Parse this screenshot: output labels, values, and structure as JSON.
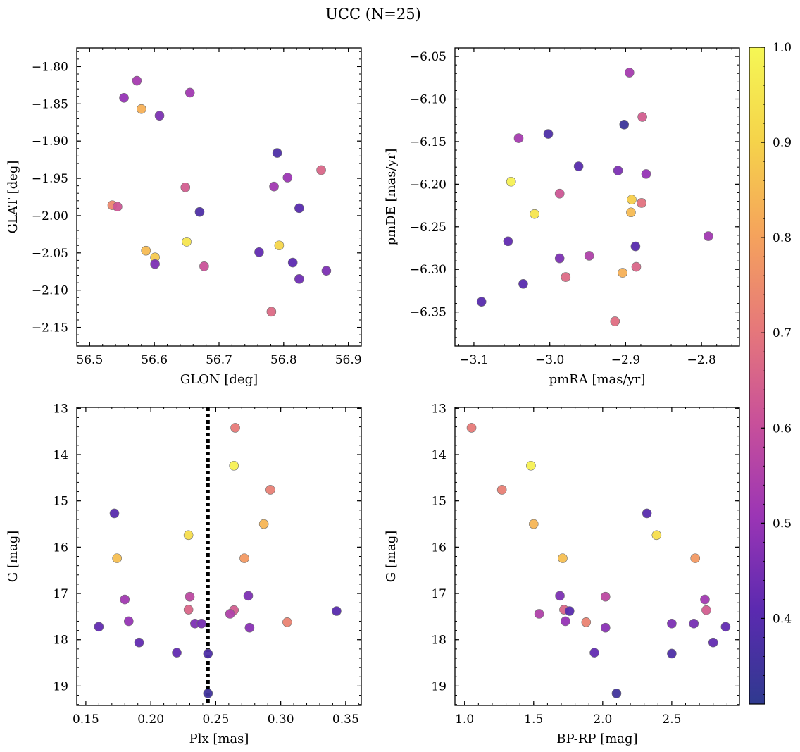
{
  "figure": {
    "title": "UCC (N=25)"
  },
  "colorbar": {
    "range": [
      0.31,
      1.0
    ],
    "ticks": [
      0.4,
      0.5,
      0.6,
      0.7,
      0.8,
      0.9,
      1.0
    ],
    "tick_labels": [
      "0.4",
      "0.5",
      "0.6",
      "0.7",
      "0.8",
      "0.9",
      "1.0"
    ],
    "colormap": "plasma",
    "cmap_stops": [
      "#2f3a8f",
      "#5b2ab0",
      "#9b35b5",
      "#c8509a",
      "#e6787a",
      "#f5a35c",
      "#f5d34a",
      "#f5f755"
    ]
  },
  "chart_data": [
    {
      "type": "scatter",
      "panel": "top-left",
      "xlabel": "GLON [deg]",
      "ylabel": "GLAT [deg]",
      "xlim": [
        56.48,
        56.92
      ],
      "ylim": [
        -2.175,
        -1.775
      ],
      "xticks": [
        56.5,
        56.6,
        56.7,
        56.8,
        56.9
      ],
      "xtick_labels": [
        "56.5",
        "56.6",
        "56.7",
        "56.8",
        "56.9"
      ],
      "yticks": [
        -1.8,
        -1.85,
        -1.9,
        -1.95,
        -2.0,
        -2.05,
        -2.1,
        -2.15
      ],
      "ytick_labels": [
        "−1.80",
        "−1.85",
        "−1.90",
        "−1.95",
        "−2.00",
        "−2.05",
        "−2.10",
        "−2.15"
      ],
      "x": [
        56.573,
        56.553,
        56.655,
        56.58,
        56.608,
        56.79,
        56.858,
        56.806,
        56.785,
        56.648,
        56.535,
        56.543,
        56.67,
        56.824,
        56.65,
        56.793,
        56.587,
        56.601,
        56.762,
        56.601,
        56.677,
        56.814,
        56.866,
        56.824,
        56.781
      ],
      "y": [
        -1.819,
        -1.842,
        -1.835,
        -1.857,
        -1.866,
        -1.916,
        -1.939,
        -1.949,
        -1.961,
        -1.962,
        -1.986,
        -1.988,
        -1.995,
        -1.99,
        -2.035,
        -2.04,
        -2.047,
        -2.056,
        -2.049,
        -2.065,
        -2.068,
        -2.063,
        -2.074,
        -2.085,
        -2.129
      ],
      "c": [
        0.53,
        0.5,
        0.52,
        0.83,
        0.46,
        0.38,
        0.66,
        0.51,
        0.52,
        0.64,
        0.74,
        0.62,
        0.38,
        0.4,
        0.95,
        0.91,
        0.85,
        0.88,
        0.42,
        0.46,
        0.61,
        0.41,
        0.46,
        0.44,
        0.67
      ]
    },
    {
      "type": "scatter",
      "panel": "top-right",
      "xlabel": "pmRA [mas/yr]",
      "ylabel": "pmDE [mas/yr]",
      "xlim": [
        -3.125,
        -2.75
      ],
      "ylim": [
        -6.39,
        -6.04
      ],
      "xticks": [
        -3.1,
        -3.0,
        -2.9,
        -2.8
      ],
      "xtick_labels": [
        "−3.1",
        "−3.0",
        "−2.9",
        "−2.8"
      ],
      "yticks": [
        -6.05,
        -6.1,
        -6.15,
        -6.2,
        -6.25,
        -6.3,
        -6.35
      ],
      "ytick_labels": [
        "−6.05",
        "−6.10",
        "−6.15",
        "−6.20",
        "−6.25",
        "−6.30",
        "−6.35"
      ],
      "x": [
        -2.895,
        -2.878,
        -3.041,
        -3.002,
        -2.902,
        -2.962,
        -2.91,
        -2.873,
        -3.051,
        -2.987,
        -2.892,
        -2.879,
        -3.02,
        -2.893,
        -3.055,
        -2.887,
        -2.987,
        -2.948,
        -3.035,
        -2.904,
        -2.886,
        -2.979,
        -3.09,
        -2.914,
        -2.791
      ],
      "y": [
        -6.069,
        -6.121,
        -6.146,
        -6.141,
        -6.13,
        -6.179,
        -6.184,
        -6.188,
        -6.197,
        -6.211,
        -6.218,
        -6.222,
        -6.235,
        -6.233,
        -6.267,
        -6.273,
        -6.287,
        -6.284,
        -6.317,
        -6.304,
        -6.297,
        -6.309,
        -6.338,
        -6.361,
        -6.261
      ],
      "c": [
        0.53,
        0.64,
        0.53,
        0.38,
        0.34,
        0.4,
        0.46,
        0.5,
        0.98,
        0.62,
        0.89,
        0.69,
        0.95,
        0.85,
        0.42,
        0.4,
        0.46,
        0.55,
        0.4,
        0.83,
        0.66,
        0.67,
        0.4,
        0.68,
        0.52
      ]
    },
    {
      "type": "scatter",
      "panel": "bottom-left",
      "xlabel": "Plx [mas]",
      "ylabel": "G [mag]",
      "xlim": [
        0.143,
        0.362
      ],
      "ylim": [
        19.42,
        12.98
      ],
      "invert_y": true,
      "xticks": [
        0.15,
        0.2,
        0.25,
        0.3,
        0.35
      ],
      "xtick_labels": [
        "0.15",
        "0.20",
        "0.25",
        "0.30",
        "0.35"
      ],
      "yticks": [
        13,
        14,
        15,
        16,
        17,
        18,
        19
      ],
      "ytick_labels": [
        "13",
        "14",
        "15",
        "16",
        "17",
        "18",
        "19"
      ],
      "vline": {
        "x": 0.244,
        "style": "dotted",
        "color": "#000000"
      },
      "x": [
        0.265,
        0.264,
        0.292,
        0.172,
        0.287,
        0.229,
        0.174,
        0.272,
        0.275,
        0.23,
        0.18,
        0.229,
        0.264,
        0.261,
        0.183,
        0.305,
        0.234,
        0.239,
        0.16,
        0.276,
        0.191,
        0.22,
        0.244,
        0.244,
        0.343
      ],
      "y": [
        13.42,
        14.24,
        14.76,
        15.27,
        15.5,
        15.74,
        16.24,
        16.24,
        17.05,
        17.07,
        17.13,
        17.35,
        17.36,
        17.44,
        17.6,
        17.62,
        17.65,
        17.65,
        17.72,
        17.74,
        18.06,
        18.28,
        18.3,
        19.16,
        17.38
      ],
      "c": [
        0.71,
        0.98,
        0.72,
        0.4,
        0.84,
        0.93,
        0.86,
        0.78,
        0.46,
        0.58,
        0.52,
        0.66,
        0.64,
        0.55,
        0.5,
        0.73,
        0.46,
        0.45,
        0.42,
        0.48,
        0.42,
        0.42,
        0.38,
        0.35,
        0.4
      ]
    },
    {
      "type": "scatter",
      "panel": "bottom-right",
      "xlabel": "BP-RP [mag]",
      "ylabel": "G [mag]",
      "xlim": [
        0.93,
        2.99
      ],
      "ylim": [
        19.42,
        12.98
      ],
      "invert_y": true,
      "xticks": [
        1.0,
        1.5,
        2.0,
        2.5
      ],
      "xtick_labels": [
        "1.0",
        "1.5",
        "2.0",
        "2.5"
      ],
      "yticks": [
        13,
        14,
        15,
        16,
        17,
        18,
        19
      ],
      "ytick_labels": [
        "13",
        "14",
        "15",
        "16",
        "17",
        "18",
        "19"
      ],
      "x": [
        1.05,
        1.48,
        1.27,
        2.32,
        1.5,
        2.39,
        1.71,
        2.67,
        1.69,
        2.02,
        2.74,
        1.72,
        1.76,
        2.75,
        1.54,
        1.73,
        1.88,
        2.5,
        2.66,
        2.89,
        2.02,
        2.8,
        1.94,
        2.5,
        2.1
      ],
      "y": [
        13.42,
        14.24,
        14.76,
        15.27,
        15.5,
        15.74,
        16.24,
        16.24,
        17.05,
        17.07,
        17.13,
        17.35,
        17.38,
        17.36,
        17.44,
        17.6,
        17.62,
        17.65,
        17.65,
        17.72,
        17.74,
        18.06,
        18.28,
        18.3,
        19.16
      ],
      "c": [
        0.71,
        0.98,
        0.72,
        0.4,
        0.84,
        0.93,
        0.86,
        0.78,
        0.46,
        0.58,
        0.52,
        0.66,
        0.4,
        0.64,
        0.55,
        0.5,
        0.73,
        0.46,
        0.45,
        0.42,
        0.48,
        0.42,
        0.42,
        0.38,
        0.35
      ]
    }
  ]
}
